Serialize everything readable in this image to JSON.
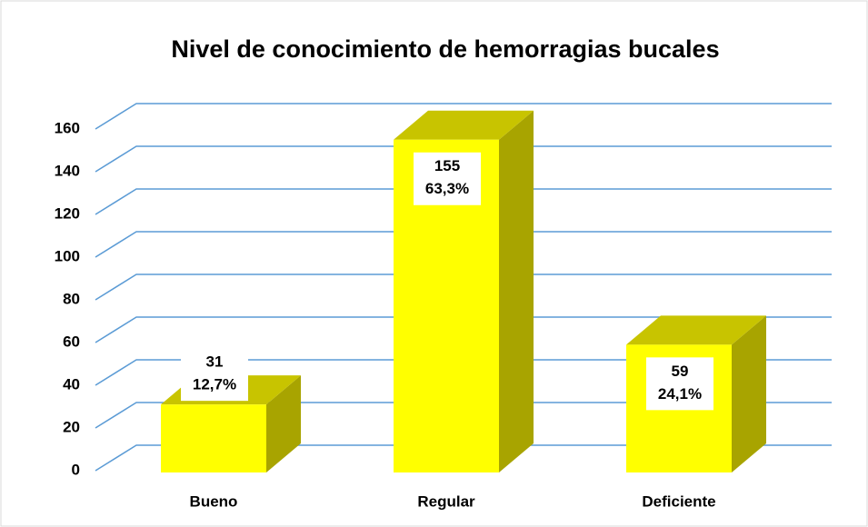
{
  "chart_data": {
    "type": "bar3d",
    "title": "Nivel de conocimiento de hemorragias bucales",
    "categories": [
      "Bueno",
      "Regular",
      "Deficiente"
    ],
    "values": [
      31,
      155,
      59
    ],
    "percent_labels": [
      "12,7%",
      "63,3%",
      "24,1%"
    ],
    "color": "#ffff00",
    "ylim": [
      0,
      160
    ],
    "yticks": [
      0,
      20,
      40,
      60,
      80,
      100,
      120,
      140,
      160
    ],
    "grid": true
  }
}
